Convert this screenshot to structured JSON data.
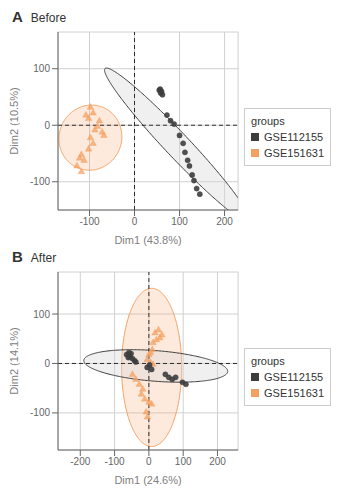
{
  "chart_data": [
    {
      "type": "scatter",
      "label": "A",
      "title": "Before",
      "x_label": "Dim1 (43.8%)",
      "y_label": "Dim2 (10.5%)",
      "xlim": [
        -170,
        230
      ],
      "ylim": [
        -150,
        165
      ],
      "xticks": [
        -100,
        0,
        100,
        200
      ],
      "yticks": [
        -100,
        0,
        100
      ],
      "grid": true,
      "legend": "right",
      "legend_title": "groups",
      "hlines": [
        0
      ],
      "vlines": [
        0
      ],
      "series": [
        {
          "name": "GSE112155",
          "color": "#3d3d3d",
          "marker": "circle",
          "values": [
            [
              55,
              62
            ],
            [
              58,
              57
            ],
            [
              62,
              54
            ],
            [
              60,
              60
            ],
            [
              57,
              64
            ],
            [
              72,
              18
            ],
            [
              80,
              8
            ],
            [
              88,
              2
            ],
            [
              100,
              -18
            ],
            [
              108,
              -32
            ],
            [
              112,
              -48
            ],
            [
              118,
              -62
            ],
            [
              122,
              -72
            ],
            [
              128,
              -88
            ],
            [
              132,
              -98
            ],
            [
              138,
              -112
            ],
            [
              145,
              -122
            ]
          ],
          "ellipse": {
            "cx": 95,
            "cy": -35,
            "width": 420,
            "height": 48,
            "angle": -40,
            "color": "#d9d9d9"
          }
        },
        {
          "name": "GSE151631",
          "color": "#f4a060",
          "marker": "triangle",
          "values": [
            [
              -128,
              -72
            ],
            [
              -118,
              -82
            ],
            [
              -112,
              -62
            ],
            [
              -98,
              -22
            ],
            [
              -92,
              -32
            ],
            [
              -102,
              -42
            ],
            [
              -88,
              -8
            ],
            [
              -82,
              -2
            ],
            [
              -78,
              8
            ],
            [
              -72,
              -12
            ],
            [
              -68,
              -18
            ],
            [
              -108,
              18
            ],
            [
              -102,
              12
            ],
            [
              -92,
              22
            ],
            [
              -98,
              32
            ],
            [
              -118,
              -52
            ],
            [
              -122,
              -58
            ]
          ],
          "ellipse": {
            "cx": -98,
            "cy": -22,
            "width": 140,
            "height": 115,
            "angle": 5,
            "color": "#f4a060"
          }
        }
      ]
    },
    {
      "type": "scatter",
      "label": "B",
      "title": "After",
      "x_label": "Dim1 (24.6%)",
      "y_label": "Dim2 (14.1%)",
      "xlim": [
        -265,
        260
      ],
      "ylim": [
        -175,
        185
      ],
      "xticks": [
        -200,
        -100,
        0,
        100,
        200
      ],
      "yticks": [
        -100,
        0,
        100
      ],
      "grid": true,
      "legend": "right",
      "legend_title": "groups",
      "hlines": [
        0
      ],
      "vlines": [
        0
      ],
      "series": [
        {
          "name": "GSE112155",
          "color": "#3d3d3d",
          "marker": "circle",
          "values": [
            [
              -65,
              18
            ],
            [
              -58,
              22
            ],
            [
              -52,
              20
            ],
            [
              -60,
              12
            ],
            [
              -55,
              14
            ],
            [
              -48,
              10
            ],
            [
              -42,
              6
            ],
            [
              -38,
              3
            ],
            [
              -5,
              -8
            ],
            [
              2,
              -3
            ],
            [
              8,
              -12
            ],
            [
              48,
              -22
            ],
            [
              58,
              -28
            ],
            [
              68,
              -32
            ],
            [
              78,
              -28
            ],
            [
              98,
              -38
            ],
            [
              108,
              -42
            ]
          ],
          "ellipse": {
            "cx": 20,
            "cy": -5,
            "width": 420,
            "height": 62,
            "angle": -3,
            "color": "#d9d9d9"
          }
        },
        {
          "name": "GSE151631",
          "color": "#f4a060",
          "marker": "triangle",
          "values": [
            [
              18,
              62
            ],
            [
              28,
              68
            ],
            [
              38,
              58
            ],
            [
              32,
              52
            ],
            [
              12,
              42
            ],
            [
              22,
              48
            ],
            [
              5,
              22
            ],
            [
              10,
              28
            ],
            [
              0,
              18
            ],
            [
              -5,
              8
            ],
            [
              5,
              2
            ],
            [
              12,
              -2
            ],
            [
              -28,
              -42
            ],
            [
              -18,
              -52
            ],
            [
              -22,
              -62
            ],
            [
              -12,
              -72
            ],
            [
              0,
              -78
            ],
            [
              8,
              -82
            ],
            [
              -8,
              -98
            ],
            [
              -4,
              -108
            ],
            [
              -38,
              -32
            ],
            [
              -48,
              -22
            ]
          ],
          "ellipse": {
            "cx": 8,
            "cy": -8,
            "width": 175,
            "height": 320,
            "angle": 0,
            "color": "#f4a060"
          }
        }
      ]
    }
  ]
}
